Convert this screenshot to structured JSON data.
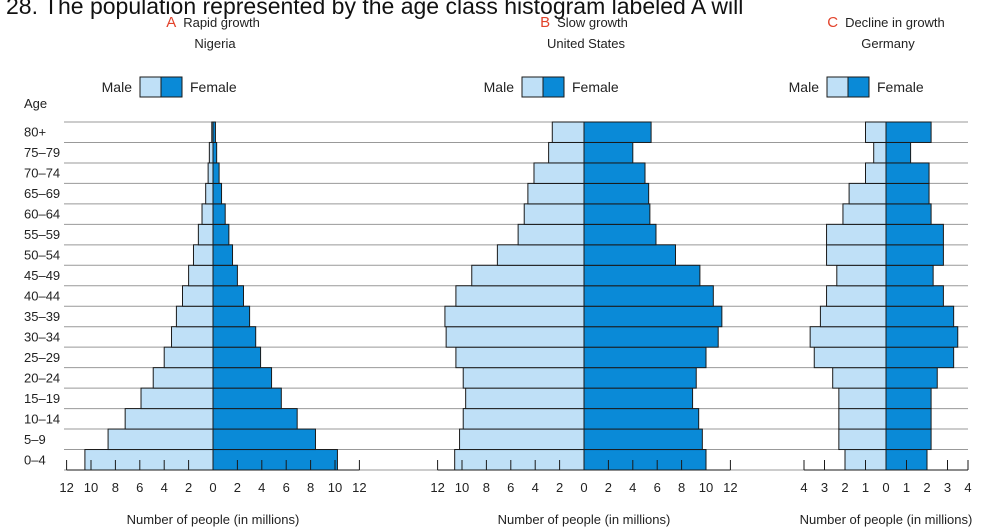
{
  "question": "28. The population represented by the age class histogram labeled A will",
  "colors": {
    "male": "#bfe0f7",
    "female": "#0a8ad7",
    "outline": "#1a1a1a",
    "letter": "#e2432b",
    "grid": "#999999"
  },
  "age_axis_label": "Age",
  "chart_data": [
    {
      "type": "bar",
      "letter": "A",
      "title": "Rapid growth",
      "subtitle": "Nigeria",
      "legend": {
        "male": "Male",
        "female": "Female"
      },
      "xlabel": "Number of people (in millions)",
      "xlim": [
        -12,
        12
      ],
      "xticks": [
        -12,
        -10,
        -8,
        -6,
        -4,
        -2,
        0,
        2,
        4,
        6,
        8,
        10,
        12
      ],
      "tick_labels": [
        "12",
        "10",
        "8",
        "6",
        "4",
        "2",
        "0",
        "2",
        "4",
        "6",
        "8",
        "10",
        "12"
      ],
      "categories": [
        "0–4",
        "5–9",
        "10–14",
        "15–19",
        "20–24",
        "25–29",
        "30–34",
        "35–39",
        "40–44",
        "45–49",
        "50–54",
        "55–59",
        "60–64",
        "65–69",
        "70–74",
        "75–79",
        "80+"
      ],
      "series": [
        {
          "name": "Male",
          "values": [
            10.5,
            8.6,
            7.2,
            5.9,
            4.9,
            4.0,
            3.4,
            3.0,
            2.5,
            2.0,
            1.6,
            1.2,
            0.9,
            0.6,
            0.4,
            0.3,
            0.1
          ]
        },
        {
          "name": "Female",
          "values": [
            10.2,
            8.4,
            6.9,
            5.6,
            4.8,
            3.9,
            3.5,
            3.0,
            2.5,
            2.0,
            1.6,
            1.3,
            1.0,
            0.7,
            0.5,
            0.3,
            0.2
          ]
        }
      ]
    },
    {
      "type": "bar",
      "letter": "B",
      "title": "Slow growth",
      "subtitle": "United States",
      "legend": {
        "male": "Male",
        "female": "Female"
      },
      "xlabel": "Number of people (in millions)",
      "xlim": [
        -12,
        12
      ],
      "xticks": [
        -12,
        -10,
        -8,
        -6,
        -4,
        -2,
        0,
        2,
        4,
        6,
        8,
        10,
        12
      ],
      "tick_labels": [
        "12",
        "10",
        "8",
        "6",
        "4",
        "2",
        "0",
        "2",
        "4",
        "6",
        "8",
        "10",
        "12"
      ],
      "categories": [
        "0–4",
        "5–9",
        "10–14",
        "15–19",
        "20–24",
        "25–29",
        "30–34",
        "35–39",
        "40–44",
        "45–49",
        "50–54",
        "55–59",
        "60–64",
        "65–69",
        "70–74",
        "75–79",
        "80+"
      ],
      "series": [
        {
          "name": "Male",
          "values": [
            10.6,
            10.2,
            9.9,
            9.7,
            9.9,
            10.5,
            11.3,
            11.4,
            10.5,
            9.2,
            7.1,
            5.4,
            4.9,
            4.6,
            4.1,
            2.9,
            2.6
          ]
        },
        {
          "name": "Female",
          "values": [
            10.0,
            9.7,
            9.4,
            8.9,
            9.2,
            10.0,
            11.0,
            11.3,
            10.6,
            9.5,
            7.5,
            5.9,
            5.4,
            5.3,
            5.0,
            4.0,
            5.5
          ]
        }
      ]
    },
    {
      "type": "bar",
      "letter": "C",
      "title": "Decline in growth",
      "subtitle": "Germany",
      "legend": {
        "male": "Male",
        "female": "Female"
      },
      "xlabel": "Number of people (in millions)",
      "xlim": [
        -4,
        4
      ],
      "xticks": [
        -4,
        -3,
        -2,
        -1,
        0,
        1,
        2,
        3,
        4
      ],
      "tick_labels": [
        "4",
        "3",
        "2",
        "1",
        "0",
        "1",
        "2",
        "3",
        "4"
      ],
      "categories": [
        "0–4",
        "5–9",
        "10–14",
        "15–19",
        "20–24",
        "25–29",
        "30–34",
        "35–39",
        "40–44",
        "45–49",
        "50–54",
        "55–59",
        "60–64",
        "65–69",
        "70–74",
        "75–79",
        "80+"
      ],
      "series": [
        {
          "name": "Male",
          "values": [
            2.0,
            2.3,
            2.3,
            2.3,
            2.6,
            3.5,
            3.7,
            3.2,
            2.9,
            2.4,
            2.9,
            2.9,
            2.1,
            1.8,
            1.0,
            0.6,
            1.0
          ]
        },
        {
          "name": "Female",
          "values": [
            2.0,
            2.2,
            2.2,
            2.2,
            2.5,
            3.3,
            3.5,
            3.3,
            2.8,
            2.3,
            2.8,
            2.8,
            2.2,
            2.1,
            2.1,
            1.2,
            2.2
          ]
        }
      ]
    }
  ]
}
